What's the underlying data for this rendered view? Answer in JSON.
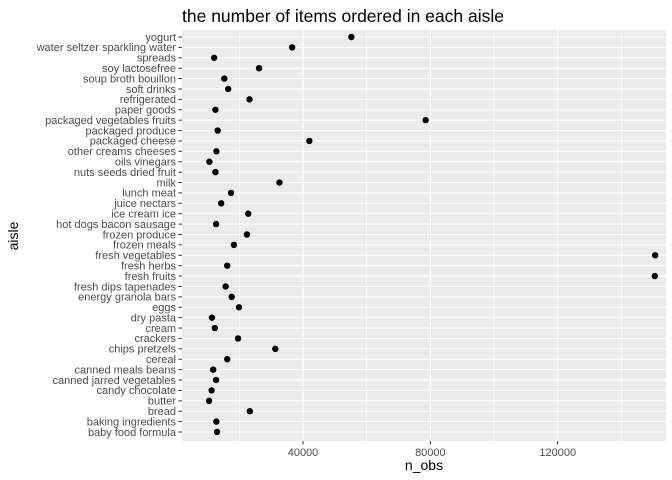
{
  "chart_data": {
    "type": "scatter",
    "title": "the number of items ordered in each aisle",
    "xlabel": "n_obs",
    "ylabel": "aisle",
    "xlim": [
      2000,
      154000
    ],
    "x_ticks": [
      40000,
      80000,
      120000
    ],
    "x_tick_labels": [
      "40000",
      "80000",
      "120000"
    ],
    "grid": true,
    "point_color": "#000000",
    "panel_background": "#ebebeb",
    "grid_color": "#ffffff",
    "categories": [
      "baby food formula",
      "baking ingredients",
      "bread",
      "butter",
      "candy chocolate",
      "canned jarred vegetables",
      "canned meals beans",
      "cereal",
      "chips pretzels",
      "crackers",
      "cream",
      "dry pasta",
      "eggs",
      "energy granola bars",
      "fresh dips tapenades",
      "fresh fruits",
      "fresh herbs",
      "fresh vegetables",
      "frozen meals",
      "frozen produce",
      "hot dogs bacon sausage",
      "ice cream ice",
      "juice nectars",
      "lunch meat",
      "milk",
      "nuts seeds dried fruit",
      "oils vinegars",
      "other creams cheeses",
      "packaged cheese",
      "packaged produce",
      "packaged vegetables fruits",
      "paper goods",
      "refrigerated",
      "soft drinks",
      "soup broth bouillon",
      "soy lactosefree",
      "spreads",
      "water seltzer sparkling water",
      "yogurt"
    ],
    "values": [
      13000,
      12800,
      23300,
      10500,
      11300,
      12700,
      11800,
      16200,
      31300,
      19600,
      12300,
      11400,
      19900,
      17600,
      15700,
      150500,
      16200,
      150600,
      18300,
      22400,
      12700,
      22800,
      14300,
      17400,
      32600,
      12500,
      10600,
      12800,
      42000,
      13200,
      78500,
      12500,
      23200,
      16500,
      15300,
      26200,
      12100,
      36600,
      55200
    ]
  }
}
